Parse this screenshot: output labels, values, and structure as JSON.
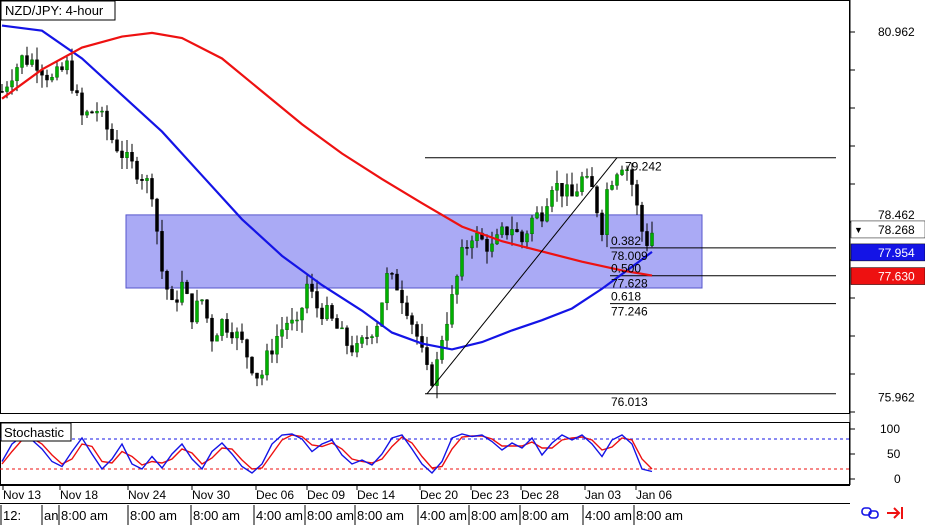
{
  "chart_data": {
    "type": "candlestick",
    "title": "NZD/JPY: 4-hour",
    "price_axis": {
      "range": [
        75.75,
        81.4
      ],
      "tick_labels": [
        "80.962",
        "78.462",
        "75.962"
      ],
      "tick_values": [
        80.962,
        78.462,
        75.962
      ]
    },
    "price_badges": [
      {
        "value": "78.268",
        "price": 78.268,
        "bg": "#ffffff",
        "fg": "#000000",
        "marker": "▼"
      },
      {
        "value": "77.954",
        "price": 77.954,
        "bg": "#1414e6",
        "fg": "#ffffff",
        "marker": ""
      },
      {
        "value": "77.630",
        "price": 77.63,
        "bg": "#ee1111",
        "fg": "#ffffff",
        "marker": ""
      }
    ],
    "date_axis": {
      "labels": [
        "Nov 13",
        "Nov 18",
        "Nov 24",
        "Nov 30",
        "Dec 06",
        "Dec 09",
        "Dec 14",
        "Dec 20",
        "Dec 23",
        "Dec 28",
        "Jan 03",
        "Jan 06"
      ]
    },
    "time_axis": {
      "labels": [
        "12:",
        "an",
        "8:00 am",
        "8:00 am",
        "8:00 am",
        "4:00 am",
        "8:00 am",
        "8:00 am",
        "4:00 am",
        "8:00 am",
        "8:00 am",
        "4:00 am",
        "8:00 am"
      ]
    },
    "fibonacci": {
      "levels": [
        {
          "ratio": "0.000",
          "price_label": "79.242",
          "price": 79.242
        },
        {
          "ratio": "0.382",
          "price_label": "78.009",
          "price": 78.009
        },
        {
          "ratio": "0.500",
          "price_label": "77.628",
          "price": 77.628
        },
        {
          "ratio": "0.618",
          "price_label": "77.246",
          "price": 77.246
        },
        {
          "ratio": "1.000",
          "price_label": "76.013",
          "price": 76.013
        }
      ],
      "visible_labels": [
        "79.242",
        "0.382",
        "78.009",
        "0.500",
        "77.628",
        "0.618",
        "77.246",
        "76.013"
      ]
    },
    "zone": {
      "top": 78.46,
      "bottom": 77.46,
      "color": "#aaaaf5"
    },
    "moving_averages": [
      {
        "color": "#1414e6",
        "points": [
          [
            0,
            81.05
          ],
          [
            40,
            80.98
          ],
          [
            80,
            80.6
          ],
          [
            120,
            80.1
          ],
          [
            160,
            79.6
          ],
          [
            200,
            79.0
          ],
          [
            240,
            78.4
          ],
          [
            280,
            77.9
          ],
          [
            320,
            77.5
          ],
          [
            360,
            77.15
          ],
          [
            390,
            76.85
          ],
          [
            420,
            76.7
          ],
          [
            450,
            76.62
          ],
          [
            480,
            76.72
          ],
          [
            510,
            76.88
          ],
          [
            540,
            77.02
          ],
          [
            570,
            77.18
          ],
          [
            600,
            77.45
          ],
          [
            630,
            77.75
          ],
          [
            650,
            77.954
          ]
        ]
      },
      {
        "color": "#ee1111",
        "points": [
          [
            0,
            80.05
          ],
          [
            40,
            80.45
          ],
          [
            80,
            80.75
          ],
          [
            120,
            80.9
          ],
          [
            150,
            80.95
          ],
          [
            180,
            80.88
          ],
          [
            220,
            80.6
          ],
          [
            260,
            80.15
          ],
          [
            300,
            79.7
          ],
          [
            340,
            79.3
          ],
          [
            380,
            78.95
          ],
          [
            420,
            78.62
          ],
          [
            460,
            78.3
          ],
          [
            500,
            78.1
          ],
          [
            540,
            77.96
          ],
          [
            580,
            77.82
          ],
          [
            620,
            77.7
          ],
          [
            650,
            77.63
          ]
        ]
      }
    ],
    "close_path": [
      [
        0,
        80.15
      ],
      [
        10,
        80.4
      ],
      [
        20,
        80.6
      ],
      [
        35,
        80.55
      ],
      [
        50,
        80.3
      ],
      [
        65,
        80.5
      ],
      [
        80,
        79.8
      ],
      [
        95,
        79.9
      ],
      [
        110,
        79.5
      ],
      [
        125,
        79.2
      ],
      [
        140,
        79.0
      ],
      [
        150,
        78.8
      ],
      [
        160,
        77.7
      ],
      [
        170,
        77.2
      ],
      [
        180,
        77.5
      ],
      [
        190,
        77.1
      ],
      [
        200,
        77.3
      ],
      [
        210,
        76.8
      ],
      [
        220,
        77.0
      ],
      [
        230,
        76.9
      ],
      [
        240,
        76.7
      ],
      [
        250,
        76.4
      ],
      [
        258,
        76.2
      ],
      [
        265,
        76.5
      ],
      [
        275,
        76.8
      ],
      [
        285,
        77.0
      ],
      [
        295,
        76.9
      ],
      [
        305,
        77.5
      ],
      [
        315,
        77.2
      ],
      [
        325,
        77.1
      ],
      [
        335,
        76.9
      ],
      [
        345,
        76.7
      ],
      [
        355,
        76.6
      ],
      [
        365,
        76.8
      ],
      [
        375,
        77.0
      ],
      [
        385,
        77.6
      ],
      [
        395,
        77.5
      ],
      [
        405,
        77.2
      ],
      [
        415,
        76.8
      ],
      [
        425,
        76.3
      ],
      [
        432,
        76.2
      ],
      [
        440,
        76.8
      ],
      [
        450,
        77.3
      ],
      [
        460,
        77.9
      ],
      [
        470,
        78.2
      ],
      [
        480,
        78.1
      ],
      [
        490,
        78.0
      ],
      [
        500,
        78.2
      ],
      [
        510,
        78.3
      ],
      [
        520,
        78.1
      ],
      [
        530,
        78.4
      ],
      [
        540,
        78.5
      ],
      [
        550,
        78.9
      ],
      [
        560,
        78.8
      ],
      [
        570,
        78.7
      ],
      [
        580,
        78.95
      ],
      [
        590,
        78.8
      ],
      [
        600,
        78.3
      ],
      [
        606,
        78.9
      ],
      [
        612,
        79.0
      ],
      [
        618,
        79.2
      ],
      [
        625,
        79.1
      ],
      [
        632,
        78.8
      ],
      [
        638,
        78.3
      ],
      [
        645,
        78.1
      ],
      [
        652,
        78.27
      ]
    ],
    "stochastic": {
      "title": "Stochastic",
      "levels": [
        "100",
        "50",
        "0"
      ],
      "level_values": [
        100,
        50,
        0
      ],
      "overbought": 80,
      "oversold": 20,
      "main": [
        [
          0,
          35
        ],
        [
          10,
          70
        ],
        [
          20,
          85
        ],
        [
          30,
          78
        ],
        [
          40,
          60
        ],
        [
          50,
          35
        ],
        [
          60,
          25
        ],
        [
          70,
          55
        ],
        [
          80,
          82
        ],
        [
          90,
          50
        ],
        [
          100,
          20
        ],
        [
          110,
          40
        ],
        [
          120,
          70
        ],
        [
          130,
          30
        ],
        [
          140,
          20
        ],
        [
          150,
          45
        ],
        [
          160,
          22
        ],
        [
          170,
          50
        ],
        [
          180,
          70
        ],
        [
          190,
          40
        ],
        [
          200,
          20
        ],
        [
          210,
          55
        ],
        [
          220,
          72
        ],
        [
          230,
          50
        ],
        [
          240,
          25
        ],
        [
          250,
          12
        ],
        [
          260,
          30
        ],
        [
          270,
          70
        ],
        [
          280,
          88
        ],
        [
          290,
          90
        ],
        [
          300,
          80
        ],
        [
          310,
          55
        ],
        [
          320,
          70
        ],
        [
          330,
          78
        ],
        [
          340,
          48
        ],
        [
          350,
          30
        ],
        [
          360,
          38
        ],
        [
          370,
          28
        ],
        [
          380,
          50
        ],
        [
          390,
          82
        ],
        [
          400,
          88
        ],
        [
          410,
          60
        ],
        [
          420,
          30
        ],
        [
          430,
          12
        ],
        [
          440,
          35
        ],
        [
          450,
          82
        ],
        [
          460,
          90
        ],
        [
          470,
          85
        ],
        [
          480,
          88
        ],
        [
          490,
          75
        ],
        [
          500,
          58
        ],
        [
          510,
          72
        ],
        [
          520,
          62
        ],
        [
          530,
          82
        ],
        [
          540,
          48
        ],
        [
          550,
          72
        ],
        [
          560,
          88
        ],
        [
          570,
          78
        ],
        [
          580,
          88
        ],
        [
          590,
          70
        ],
        [
          600,
          45
        ],
        [
          610,
          78
        ],
        [
          620,
          88
        ],
        [
          630,
          70
        ],
        [
          640,
          20
        ],
        [
          650,
          15
        ]
      ],
      "signal": [
        [
          0,
          30
        ],
        [
          10,
          55
        ],
        [
          20,
          78
        ],
        [
          30,
          82
        ],
        [
          40,
          70
        ],
        [
          50,
          48
        ],
        [
          60,
          30
        ],
        [
          70,
          40
        ],
        [
          80,
          70
        ],
        [
          90,
          65
        ],
        [
          100,
          35
        ],
        [
          110,
          32
        ],
        [
          120,
          55
        ],
        [
          130,
          45
        ],
        [
          140,
          28
        ],
        [
          150,
          35
        ],
        [
          160,
          32
        ],
        [
          170,
          40
        ],
        [
          180,
          60
        ],
        [
          190,
          52
        ],
        [
          200,
          30
        ],
        [
          210,
          42
        ],
        [
          220,
          62
        ],
        [
          230,
          60
        ],
        [
          240,
          38
        ],
        [
          250,
          20
        ],
        [
          260,
          22
        ],
        [
          270,
          50
        ],
        [
          280,
          78
        ],
        [
          290,
          88
        ],
        [
          300,
          85
        ],
        [
          310,
          68
        ],
        [
          320,
          65
        ],
        [
          330,
          72
        ],
        [
          340,
          60
        ],
        [
          350,
          40
        ],
        [
          360,
          35
        ],
        [
          370,
          32
        ],
        [
          380,
          40
        ],
        [
          390,
          65
        ],
        [
          400,
          84
        ],
        [
          410,
          72
        ],
        [
          420,
          45
        ],
        [
          430,
          22
        ],
        [
          440,
          25
        ],
        [
          450,
          60
        ],
        [
          460,
          84
        ],
        [
          470,
          86
        ],
        [
          480,
          86
        ],
        [
          490,
          80
        ],
        [
          500,
          66
        ],
        [
          510,
          66
        ],
        [
          520,
          66
        ],
        [
          530,
          74
        ],
        [
          540,
          62
        ],
        [
          550,
          62
        ],
        [
          560,
          78
        ],
        [
          570,
          82
        ],
        [
          580,
          84
        ],
        [
          590,
          78
        ],
        [
          600,
          58
        ],
        [
          610,
          64
        ],
        [
          620,
          82
        ],
        [
          630,
          78
        ],
        [
          640,
          40
        ],
        [
          650,
          20
        ]
      ]
    }
  }
}
